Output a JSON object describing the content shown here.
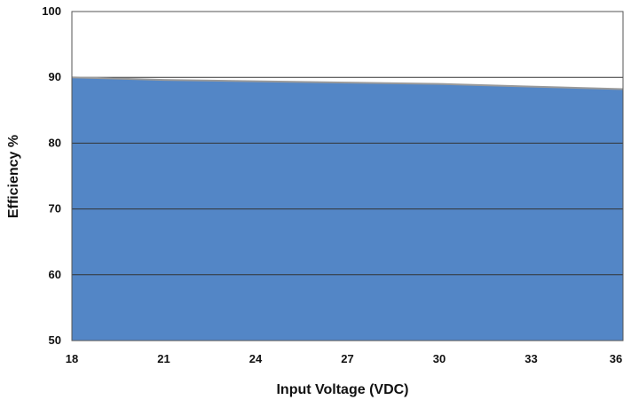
{
  "chart_data": {
    "type": "area",
    "title": "",
    "xlabel": "Input Voltage (VDC)",
    "ylabel": "Efficiency %",
    "xlim": [
      18,
      36
    ],
    "ylim": [
      50,
      100
    ],
    "x_ticks": [
      "18",
      "21",
      "24",
      "27",
      "30",
      "33",
      "36"
    ],
    "y_ticks": [
      "50",
      "60",
      "70",
      "80",
      "90",
      "100"
    ],
    "grid": true,
    "legend": "none",
    "series": [
      {
        "x": [
          18,
          21,
          24,
          27,
          30,
          33,
          36
        ],
        "values": [
          90.0,
          89.6,
          89.4,
          89.2,
          89.0,
          88.6,
          88.2
        ],
        "color": "#5386c6",
        "line_color": "#9a9a9a"
      }
    ]
  }
}
